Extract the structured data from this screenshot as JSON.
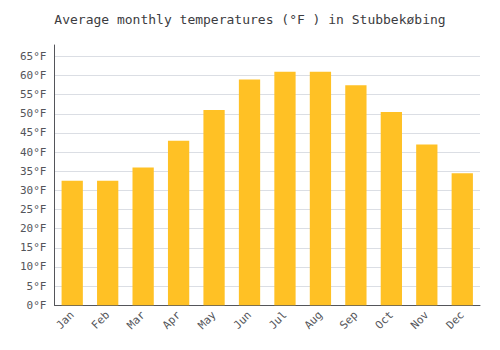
{
  "chart_data": {
    "type": "bar",
    "title": "Average monthly temperatures (°F ) in Stubbekøbing",
    "categories": [
      "Jan",
      "Feb",
      "Mar",
      "Apr",
      "May",
      "Jun",
      "Jul",
      "Aug",
      "Sep",
      "Oct",
      "Nov",
      "Dec"
    ],
    "values": [
      32.5,
      32.5,
      36.0,
      43.0,
      51.0,
      59.0,
      61.0,
      61.0,
      57.5,
      50.5,
      42.0,
      34.5
    ],
    "color": "#FFC125",
    "ylim": [
      0,
      68
    ],
    "yticks": [
      {
        "value": 0,
        "label": "0°F"
      },
      {
        "value": 5,
        "label": "5°F"
      },
      {
        "value": 10,
        "label": "10°F"
      },
      {
        "value": 15,
        "label": "15°F"
      },
      {
        "value": 20,
        "label": "20°F"
      },
      {
        "value": 25,
        "label": "25°F"
      },
      {
        "value": 30,
        "label": "30°F"
      },
      {
        "value": 35,
        "label": "35°F"
      },
      {
        "value": 40,
        "label": "40°F"
      },
      {
        "value": 45,
        "label": "45°F"
      },
      {
        "value": 50,
        "label": "50°F"
      },
      {
        "value": 55,
        "label": "55°F"
      },
      {
        "value": 60,
        "label": "60°F"
      },
      {
        "value": 65,
        "label": "65°F"
      }
    ],
    "grid": true
  }
}
